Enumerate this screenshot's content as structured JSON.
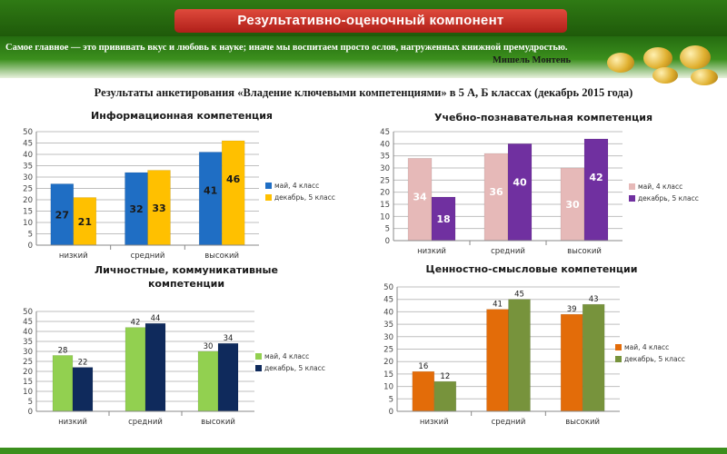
{
  "header": {
    "title": "Результативно-оценочный компонент"
  },
  "quote": {
    "text": "Самое главное — это прививать вкус и любовь к науке; иначе мы воспитаем просто ослов, нагруженных книжной премудростью.",
    "author": "Мишель Монтень"
  },
  "subtitle": "Результаты анкетирования «Владение ключевыми компетенциями»  в 5 А, Б классах (декабрь 2015 года)",
  "chart_data": [
    {
      "type": "bar",
      "title": "Информационная компетенция",
      "categories": [
        "низкий",
        "средний",
        "высокий"
      ],
      "series": [
        {
          "name": "май, 4 класс",
          "values": [
            27,
            32,
            41
          ],
          "color": "#1F6EC4"
        },
        {
          "name": "декабрь, 5 класс",
          "values": [
            21,
            33,
            46
          ],
          "color": "#FFC000"
        }
      ],
      "ylim": [
        0,
        50
      ],
      "yticks": [
        "0",
        "5",
        "10",
        "15",
        "20",
        "25",
        "30",
        "35",
        "40",
        "45",
        "50"
      ],
      "labels_inside": true,
      "label_color": "#1a1a1a",
      "legend": "right"
    },
    {
      "type": "bar",
      "title": "Учебно-познавательная компетенция",
      "categories": [
        "низкий",
        "средний",
        "высокий"
      ],
      "series": [
        {
          "name": "май, 4 класс",
          "values": [
            34,
            36,
            30
          ],
          "color": "#E6B9B8"
        },
        {
          "name": "декабрь, 5 класс",
          "values": [
            18,
            40,
            42
          ],
          "color": "#7030A0"
        }
      ],
      "ylim": [
        0,
        45
      ],
      "yticks": [
        "0",
        "5",
        "10",
        "15",
        "20",
        "25",
        "30",
        "35",
        "40",
        "45"
      ],
      "labels_inside": true,
      "label_color": "#ffffff",
      "legend": "right"
    },
    {
      "type": "bar",
      "title": "Личностные, коммуникативные компетенции",
      "title_lines": [
        "Личностные, коммуникативные",
        "компетенции"
      ],
      "categories": [
        "низкий",
        "средний",
        "высокий"
      ],
      "series": [
        {
          "name": "май, 4 класс",
          "values": [
            28,
            42,
            30
          ],
          "color": "#92D050"
        },
        {
          "name": "декабрь, 5 класс",
          "values": [
            22,
            44,
            34
          ],
          "color": "#0F2A5C"
        }
      ],
      "ylim": [
        0,
        50
      ],
      "yticks": [
        "0",
        "5",
        "10",
        "15",
        "20",
        "25",
        "30",
        "35",
        "40",
        "45",
        "50"
      ],
      "labels_inside": false,
      "label_color": "#1a1a1a",
      "legend": "right"
    },
    {
      "type": "bar",
      "title": "Ценностно-смысловые компетенции",
      "categories": [
        "низкий",
        "средний",
        "высокий"
      ],
      "series": [
        {
          "name": "май, 4 класс",
          "values": [
            16,
            41,
            39
          ],
          "color": "#E36C09"
        },
        {
          "name": "декабрь, 5 класс",
          "values": [
            12,
            45,
            43
          ],
          "color": "#77933C"
        }
      ],
      "ylim": [
        0,
        50
      ],
      "yticks": [
        "0",
        "5",
        "10",
        "15",
        "20",
        "25",
        "30",
        "35",
        "40",
        "45",
        "50"
      ],
      "labels_inside": false,
      "label_color": "#1a1a1a",
      "legend": "right"
    }
  ]
}
